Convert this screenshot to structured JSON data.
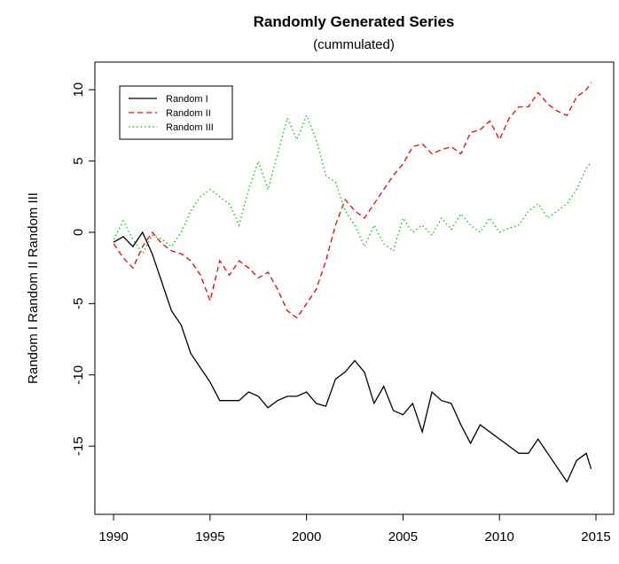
{
  "chart_data": {
    "type": "line",
    "title": "Randomly Generated Series",
    "subtitle": "(cummulated)",
    "y_label": "Random I  Random II  Random III",
    "x": [
      1990,
      1990.5,
      1991,
      1991.5,
      1992,
      1992.5,
      1993,
      1993.5,
      1994,
      1994.5,
      1995,
      1995.5,
      1996,
      1996.5,
      1997,
      1997.5,
      1998,
      1998.5,
      1999,
      1999.5,
      2000,
      2000.5,
      2001,
      2001.5,
      2002,
      2002.5,
      2003,
      2003.5,
      2004,
      2004.5,
      2005,
      2005.5,
      2006,
      2006.5,
      2007,
      2007.5,
      2008,
      2008.5,
      2009,
      2009.5,
      2010,
      2010.5,
      2011,
      2011.5,
      2012,
      2012.5,
      2013,
      2013.5,
      2014,
      2014.5,
      2014.75
    ],
    "series": [
      {
        "name": "Random I",
        "color": "#000000",
        "dash": "solid",
        "values": [
          -0.7,
          -0.3,
          -1.0,
          0.0,
          -1.5,
          -3.5,
          -5.5,
          -6.5,
          -8.5,
          -9.5,
          -10.5,
          -11.8,
          -11.8,
          -11.8,
          -11.2,
          -11.5,
          -12.3,
          -11.8,
          -11.5,
          -11.5,
          -11.2,
          -12.0,
          -12.2,
          -10.3,
          -9.8,
          -9.0,
          -9.8,
          -12.0,
          -10.8,
          -12.5,
          -12.8,
          -12.0,
          -14.0,
          -11.2,
          -11.8,
          -12.0,
          -13.5,
          -14.8,
          -13.5,
          -14.0,
          -14.5,
          -15.0,
          -15.5,
          -15.5,
          -14.5,
          -15.5,
          -16.5,
          -17.5,
          -16.0,
          -15.5,
          -16.6
        ]
      },
      {
        "name": "Random II",
        "color": "#ff0000",
        "dash": "dashed",
        "values": [
          -0.8,
          -1.8,
          -2.5,
          -1.0,
          0.0,
          -0.8,
          -1.3,
          -1.5,
          -2.0,
          -3.0,
          -4.8,
          -2.0,
          -3.0,
          -2.0,
          -2.5,
          -3.2,
          -2.8,
          -4.0,
          -5.5,
          -6.0,
          -5.0,
          -4.0,
          -2.0,
          0.5,
          2.3,
          1.5,
          1.0,
          2.0,
          3.0,
          4.0,
          4.8,
          6.0,
          6.2,
          5.5,
          5.8,
          6.0,
          5.5,
          7.0,
          7.2,
          7.8,
          6.5,
          8.0,
          8.8,
          8.8,
          9.8,
          9.0,
          8.5,
          8.2,
          9.5,
          10.0,
          10.5
        ]
      },
      {
        "name": "Random III",
        "color": "#00cd00",
        "dash": "dotted",
        "values": [
          -0.5,
          0.8,
          -0.5,
          -1.5,
          -0.2,
          -0.5,
          -1.0,
          0.0,
          1.5,
          2.5,
          3.0,
          2.5,
          2.0,
          0.5,
          3.0,
          5.0,
          3.0,
          5.5,
          8.0,
          6.5,
          8.2,
          6.5,
          4.0,
          3.5,
          1.5,
          0.5,
          -1.0,
          0.5,
          -0.8,
          -1.3,
          1.0,
          0.0,
          0.5,
          -0.2,
          1.0,
          0.2,
          1.3,
          0.5,
          0.0,
          1.0,
          0.0,
          0.3,
          0.5,
          1.5,
          2.0,
          1.0,
          1.5,
          2.0,
          3.0,
          4.5,
          4.9
        ]
      }
    ],
    "xlim": [
      1989.03,
      2015.92
    ],
    "xticks": [
      1990,
      1995,
      2000,
      2005,
      2010,
      2015
    ],
    "ylim": [
      -19.78,
      11.94
    ],
    "yticks": [
      -15,
      -10,
      -5,
      0,
      5,
      10
    ],
    "legend": "top-left"
  }
}
